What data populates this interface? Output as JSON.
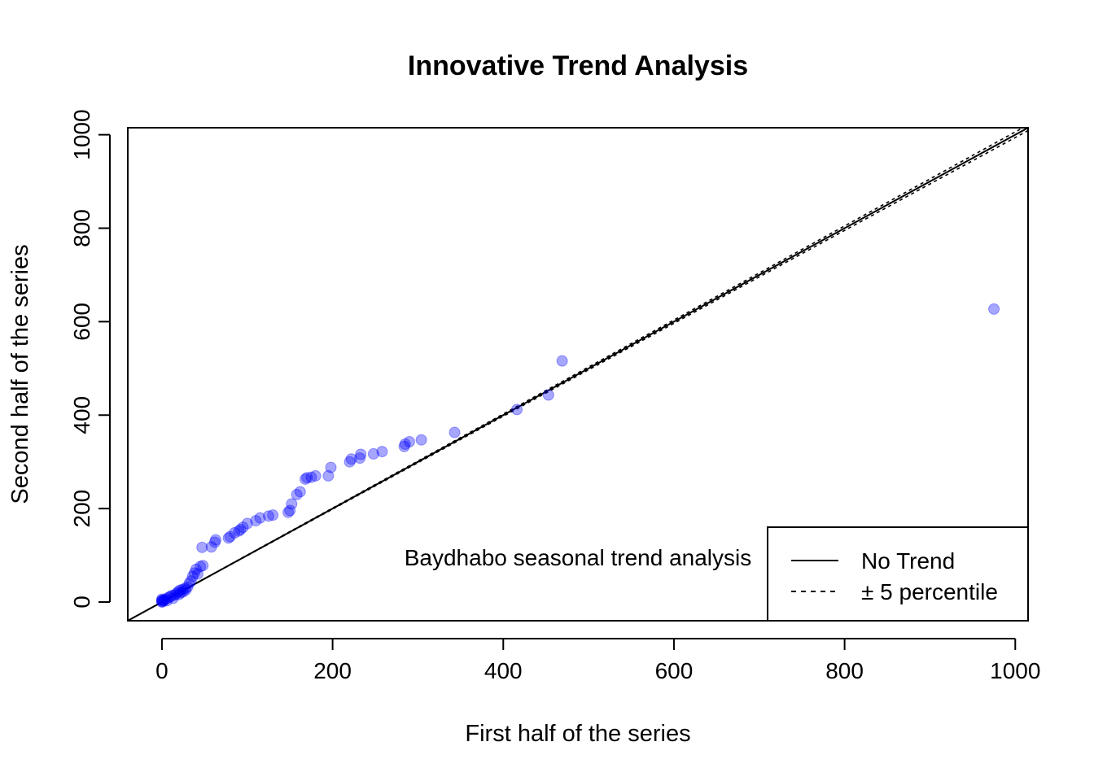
{
  "chart_data": {
    "type": "scatter",
    "title": "Innovative Trend Analysis",
    "xlabel": "First half of the series",
    "ylabel": "Second half of the series",
    "xlim": [
      -40,
      1015
    ],
    "ylim": [
      -40,
      1015
    ],
    "xticks": [
      0,
      200,
      400,
      600,
      800,
      1000
    ],
    "yticks": [
      0,
      200,
      400,
      600,
      800,
      1000
    ],
    "annotation": "Baydhabo seasonal trend analysis",
    "point_color": "#0000ff",
    "point_opacity": 0.35,
    "legend": {
      "position": "bottom-right",
      "entries": [
        {
          "label": "No Trend",
          "style": "solid"
        },
        {
          "label": "± 5 percentile",
          "style": "dashed"
        }
      ]
    },
    "reference_lines": {
      "no_trend_slope": 1.0,
      "percentile_band": 0.05
    },
    "points": [
      [
        0,
        0
      ],
      [
        0,
        2
      ],
      [
        0,
        4
      ],
      [
        0,
        6
      ],
      [
        1,
        1
      ],
      [
        2,
        3
      ],
      [
        3,
        5
      ],
      [
        5,
        7
      ],
      [
        6,
        3
      ],
      [
        8,
        10
      ],
      [
        10,
        12
      ],
      [
        12,
        14
      ],
      [
        13,
        8
      ],
      [
        15,
        15
      ],
      [
        17,
        18
      ],
      [
        19,
        22
      ],
      [
        20,
        16
      ],
      [
        21,
        25
      ],
      [
        22,
        20
      ],
      [
        24,
        27
      ],
      [
        25,
        22
      ],
      [
        27,
        29
      ],
      [
        28,
        26
      ],
      [
        30,
        32
      ],
      [
        32,
        40
      ],
      [
        34,
        45
      ],
      [
        36,
        55
      ],
      [
        38,
        62
      ],
      [
        40,
        70
      ],
      [
        42,
        60
      ],
      [
        45,
        76
      ],
      [
        48,
        78
      ],
      [
        47,
        117
      ],
      [
        58,
        118
      ],
      [
        62,
        128
      ],
      [
        63,
        133
      ],
      [
        78,
        137
      ],
      [
        80,
        140
      ],
      [
        85,
        148
      ],
      [
        90,
        152
      ],
      [
        92,
        155
      ],
      [
        95,
        160
      ],
      [
        100,
        168
      ],
      [
        110,
        174
      ],
      [
        115,
        180
      ],
      [
        125,
        184
      ],
      [
        130,
        186
      ],
      [
        148,
        192
      ],
      [
        150,
        196
      ],
      [
        152,
        210
      ],
      [
        158,
        230
      ],
      [
        162,
        236
      ],
      [
        168,
        263
      ],
      [
        170,
        266
      ],
      [
        175,
        267
      ],
      [
        180,
        270
      ],
      [
        195,
        270
      ],
      [
        198,
        288
      ],
      [
        220,
        300
      ],
      [
        222,
        306
      ],
      [
        232,
        308
      ],
      [
        233,
        316
      ],
      [
        248,
        317
      ],
      [
        258,
        322
      ],
      [
        284,
        333
      ],
      [
        285,
        338
      ],
      [
        290,
        343
      ],
      [
        304,
        347
      ],
      [
        343,
        363
      ],
      [
        416,
        412
      ],
      [
        453,
        443
      ],
      [
        469,
        516
      ],
      [
        975,
        627
      ]
    ]
  }
}
